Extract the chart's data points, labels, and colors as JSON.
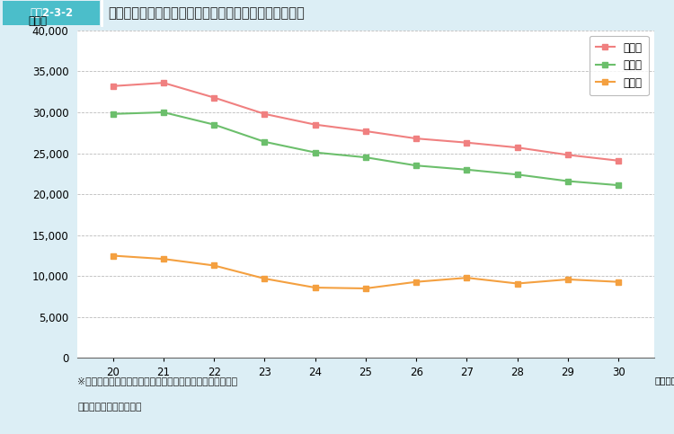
{
  "title_box": "図表2-3-2",
  "title_main": "高等学校卒業程度認定試験の出願者・受験者・合格者数",
  "ylabel": "（人）",
  "xlabel_suffix": "（年度）",
  "years": [
    20,
    21,
    22,
    23,
    24,
    25,
    26,
    27,
    28,
    29,
    30
  ],
  "shutsugansha": [
    33200,
    33600,
    31800,
    29800,
    28500,
    27700,
    26800,
    26300,
    25700,
    24800,
    24100
  ],
  "jukensha": [
    29800,
    30000,
    28500,
    26400,
    25100,
    24500,
    23500,
    23000,
    22400,
    21600,
    21100
  ],
  "goukakusha": [
    12500,
    12100,
    11300,
    9700,
    8600,
    8500,
    9300,
    9800,
    9100,
    9600,
    9300
  ],
  "color_shutsugansha": "#f08080",
  "color_jukensha": "#6cbf6c",
  "color_goukakusha": "#f4a040",
  "legend_labels": [
    "出願者",
    "受験者",
    "合格者"
  ],
  "ylim": [
    0,
    40000
  ],
  "yticks": [
    0,
    5000,
    10000,
    15000,
    20000,
    25000,
    30000,
    35000,
    40000
  ],
  "note1": "※合格者は，全科目合格者であり，一部科目合格者を除く。",
  "note2": "（出典）文部科学省調べ",
  "bg_color": "#dceef5",
  "plot_bg_color": "#ffffff",
  "header_teal": "#4bbeca",
  "header_white_bg": "#f0f8fb",
  "grid_color": "#aaaaaa",
  "grid_style": ":"
}
